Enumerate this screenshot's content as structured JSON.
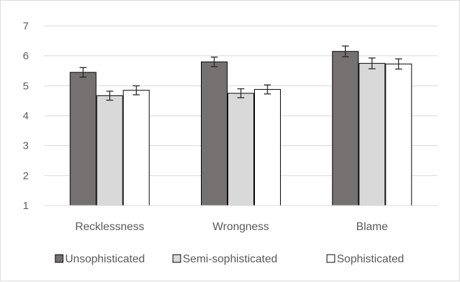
{
  "chart_data": {
    "type": "bar",
    "title": "",
    "xlabel": "",
    "ylabel": "",
    "ylim": [
      1,
      7
    ],
    "yticks": [
      1,
      2,
      3,
      4,
      5,
      6,
      7
    ],
    "grid": true,
    "legend_position": "bottom",
    "categories": [
      "Recklessness",
      "Wrongness",
      "Blame"
    ],
    "series": [
      {
        "name": "Unsophisticated",
        "color": "#767171",
        "values": [
          5.45,
          5.8,
          6.15
        ],
        "errors": [
          0.16,
          0.16,
          0.18
        ]
      },
      {
        "name": "Semi-sophisticated",
        "color": "#d9d9d9",
        "values": [
          4.67,
          4.75,
          5.75
        ],
        "errors": [
          0.15,
          0.15,
          0.18
        ]
      },
      {
        "name": "Sophisticated",
        "color": "#ffffff",
        "values": [
          4.85,
          4.88,
          5.73
        ],
        "errors": [
          0.15,
          0.15,
          0.17
        ]
      }
    ]
  }
}
